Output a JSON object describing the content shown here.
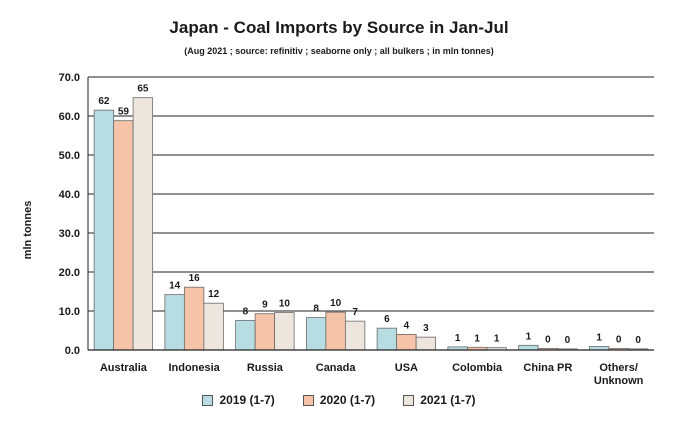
{
  "chart_data": {
    "type": "bar",
    "title": "Japan - Coal Imports by Source in Jan-Jul",
    "subtitle": "(Aug 2021 ; source: refinitiv ; seaborne only ; all bulkers ; in mln tonnes)",
    "ylabel": "mln tonnes",
    "xlabel": "",
    "ylim": [
      0,
      70
    ],
    "yticks": [
      "0.0",
      "10.0",
      "20.0",
      "30.0",
      "40.0",
      "50.0",
      "60.0",
      "70.0"
    ],
    "grid": true,
    "legend_position": "bottom",
    "categories": [
      "Australia",
      "Indonesia",
      "Russia",
      "Canada",
      "USA",
      "Colombia",
      "China PR",
      "Others/\nUnknown"
    ],
    "series": [
      {
        "name": "2019 (1-7)",
        "color": "#b7dde3",
        "values": [
          61.5,
          14.2,
          7.6,
          8.3,
          5.6,
          0.8,
          1.2,
          0.9
        ],
        "labels": [
          "62",
          "14",
          "8",
          "8",
          "6",
          "1",
          "1",
          "1"
        ]
      },
      {
        "name": "2020 (1-7)",
        "color": "#f5c4a8",
        "values": [
          58.8,
          16.1,
          9.3,
          9.7,
          4.0,
          0.7,
          0.4,
          0.4
        ],
        "labels": [
          "59",
          "16",
          "9",
          "10",
          "4",
          "1",
          "0",
          "0"
        ]
      },
      {
        "name": "2021 (1-7)",
        "color": "#ede6df",
        "values": [
          64.7,
          12.0,
          9.6,
          7.4,
          3.3,
          0.6,
          0.3,
          0.3
        ],
        "labels": [
          "65",
          "12",
          "10",
          "7",
          "3",
          "1",
          "0",
          "0"
        ]
      }
    ]
  }
}
